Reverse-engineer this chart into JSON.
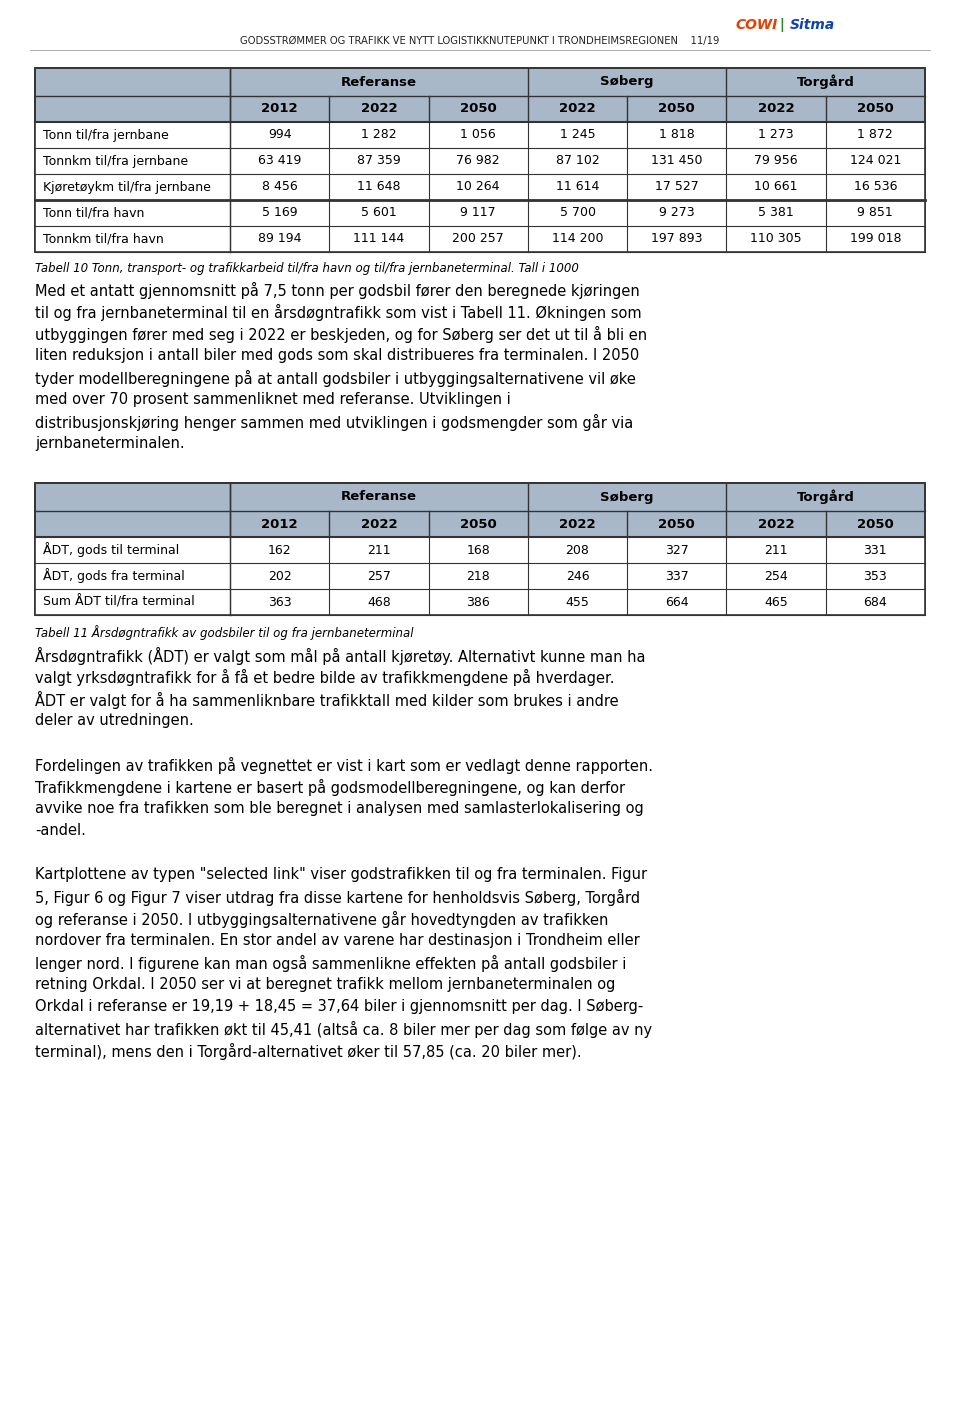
{
  "header_text": "GODSSTRØMMER OG TRAFIKK VE NYTT LOGISTIKKNUTEPUNKT I TRONDHEIMSREGIONEN    11/19",
  "table1_caption": "Tabell 10 Tonn, transport- og trafikkarbeid til/fra havn og til/fra jernbaneterminal. Tall i 1000",
  "table2_caption": "Tabell 11 Årsdøgntrafikk av godsbiler til og fra jernbaneterminal",
  "table1": {
    "col_groups": [
      "",
      "Referanse",
      "Søberg",
      "Torgård"
    ],
    "col_group_spans": [
      1,
      3,
      2,
      2
    ],
    "col_headers": [
      "",
      "2012",
      "2022",
      "2050",
      "2022",
      "2050",
      "2022",
      "2050"
    ],
    "rows": [
      [
        "Tonn til/fra jernbane",
        "994",
        "1 282",
        "1 056",
        "1 245",
        "1 818",
        "1 273",
        "1 872"
      ],
      [
        "Tonnkm til/fra jernbane",
        "63 419",
        "87 359",
        "76 982",
        "87 102",
        "131 450",
        "79 956",
        "124 021"
      ],
      [
        "Kjøretøykm til/fra jernbane",
        "8 456",
        "11 648",
        "10 264",
        "11 614",
        "17 527",
        "10 661",
        "16 536"
      ],
      [
        "Tonn til/fra havn",
        "5 169",
        "5 601",
        "9 117",
        "5 700",
        "9 273",
        "5 381",
        "9 851"
      ],
      [
        "Tonnkm til/fra havn",
        "89 194",
        "111 144",
        "200 257",
        "114 200",
        "197 893",
        "110 305",
        "199 018"
      ]
    ],
    "separator_after_row": 2
  },
  "table2": {
    "col_groups": [
      "",
      "Referanse",
      "Søberg",
      "Torgård"
    ],
    "col_group_spans": [
      1,
      3,
      2,
      2
    ],
    "col_headers": [
      "",
      "2012",
      "2022",
      "2050",
      "2022",
      "2050",
      "2022",
      "2050"
    ],
    "rows": [
      [
        "ÅDT, gods til terminal",
        "162",
        "211",
        "168",
        "208",
        "327",
        "211",
        "331"
      ],
      [
        "ÅDT, gods fra terminal",
        "202",
        "257",
        "218",
        "246",
        "337",
        "254",
        "353"
      ],
      [
        "Sum ÅDT til/fra terminal",
        "363",
        "468",
        "386",
        "455",
        "664",
        "465",
        "684"
      ]
    ]
  },
  "paragraph1": "Med et antatt gjennomsnitt på 7,5 tonn per godsbil fører den beregnede kjøringen til og fra jernbaneterminal til en årsdøgntrafikk som vist i Tabell 11. Økningen som utbyggingen fører med seg i 2022 er beskjeden, og for Søberg ser det ut til å bli en liten reduksjon i antall biler med gods som skal distribueres fra terminalen. I 2050 tyder modellberegningene på at antall godsbiler i utbyggingsalternativene vil øke med over 70 prosent sammenliknet med referanse. Utviklingen i distribusjonskjøring henger sammen med utviklingen i godsmengder som går via jernbaneterminalen.",
  "paragraph2": "Årsdøgntrafikk (ÅDT) er valgt som mål på antall kjøretøy. Alternativt kunne man ha valgt yrkisdøgntrafikk for å få et bedre bilde av trafikkmengdene på hverdager. ÅDT er valgt for å ha sammenliknbare trafikktall med kilder som brukes i andre deler av utredningen.",
  "paragraph3": "Fordelingen av trafikken på vegnettet er vist i kart som er vedlagt denne rapporten. Trafikkmengdene i kartene er basert på godsmodellberegningene, og kan derfor avvike noe fra trafikken som ble beregnet i analysen med samlasterlokalisering og -andel.",
  "paragraph4": "Kartplottene av typen \"selected link\" viser godstrafikken til og fra terminalen. Figur 5, Figur 6 og Figur 7 viser utdrag fra disse kartene for henholdsvis Søberg, Torgård og referanse i 2050. I utbyggingsalternativene går hovedtyngden av trafikken nordover fra terminalen. En stor andel av varene har destinasjon i Trondheim eller lenger nord. I figurene kan man også sammenlikne effekten på antall godsbiler i retning Orkdal. I 2050 ser vi at beregnet trafikk mellom jernbaneterminalen og Orkdal i referanse er 19,19 + 18,45 = 37,64 biler i gjennomsnitt per dag. I Søberg-alternativet har trafikken økt til 45,41 (altså ca. 8 biler mer per dag som følge av ny terminal), mens den i Torgård-alternativet øker til 57,85 (ca. 20 biler mer).",
  "header_color": "#a8b8c8",
  "bg_color": "#ffffff",
  "border_color": "#333333",
  "cowi_color": "#e04000",
  "sitma_blue": "#1144aa",
  "sitma_green": "#44aa44"
}
